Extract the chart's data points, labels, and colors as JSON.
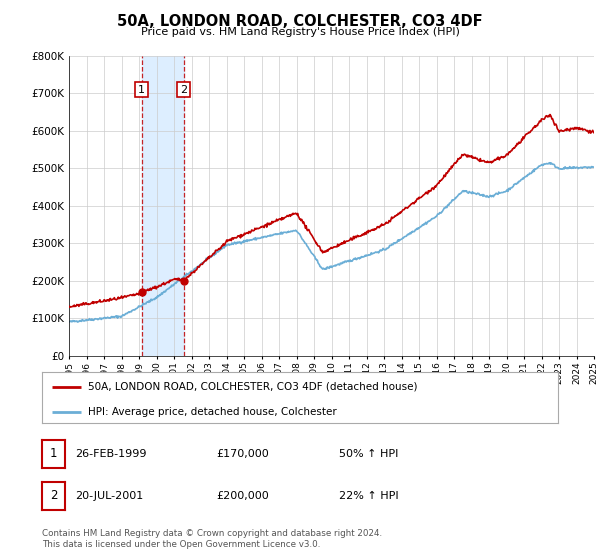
{
  "title": "50A, LONDON ROAD, COLCHESTER, CO3 4DF",
  "subtitle": "Price paid vs. HM Land Registry's House Price Index (HPI)",
  "hpi_line_color": "#6baed6",
  "price_line_color": "#c00000",
  "dot_color": "#c00000",
  "background_color": "#ffffff",
  "grid_color": "#cccccc",
  "shaded_region_color": "#ddeeff",
  "sale1_year": 1999.15,
  "sale2_year": 2001.55,
  "sale1_price": 170000,
  "sale2_price": 200000,
  "ylim": [
    0,
    800000
  ],
  "xlim_start": 1995,
  "xlim_end": 2025,
  "legend_label_price": "50A, LONDON ROAD, COLCHESTER, CO3 4DF (detached house)",
  "legend_label_hpi": "HPI: Average price, detached house, Colchester",
  "table_row1": [
    "1",
    "26-FEB-1999",
    "£170,000",
    "50% ↑ HPI"
  ],
  "table_row2": [
    "2",
    "20-JUL-2001",
    "£200,000",
    "22% ↑ HPI"
  ],
  "footnote": "Contains HM Land Registry data © Crown copyright and database right 2024.\nThis data is licensed under the Open Government Licence v3.0."
}
